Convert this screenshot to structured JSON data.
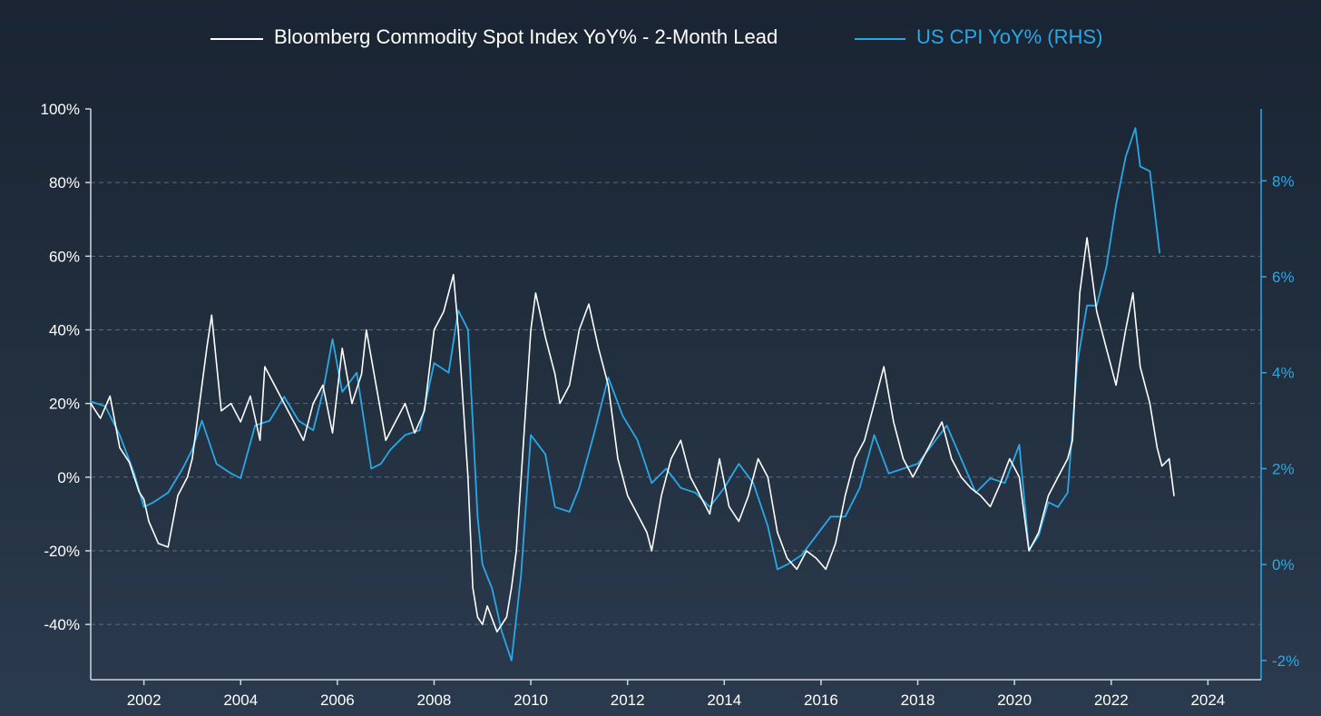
{
  "colors": {
    "background_top": "#1a2433",
    "background_bottom": "#2b3a4e",
    "commodity": "#ffffff",
    "cpi": "#29a8e8",
    "grid": "#6b7a8c",
    "axis": "#d0d6de"
  },
  "chart_data": {
    "type": "line",
    "title": "",
    "legend": {
      "placement": "top-center",
      "entries": [
        "Bloomberg Commodity Spot Index YoY% - 2-Month Lead",
        "US CPI YoY% (RHS)"
      ]
    },
    "x_axis": {
      "range": [
        2000.9,
        2025.1
      ],
      "ticks": [
        2002,
        2004,
        2006,
        2008,
        2010,
        2012,
        2014,
        2016,
        2018,
        2020,
        2022,
        2024
      ],
      "tick_labels": [
        "2002",
        "2004",
        "2006",
        "2008",
        "2010",
        "2012",
        "2014",
        "2016",
        "2018",
        "2020",
        "2022",
        "2024"
      ]
    },
    "y_left": {
      "range": [
        -55,
        100
      ],
      "ticks": [
        -40,
        -20,
        0,
        20,
        40,
        60,
        80,
        100
      ],
      "tick_labels": [
        "-40%",
        "-20%",
        "0%",
        "20%",
        "40%",
        "60%",
        "80%",
        "100%"
      ],
      "grid": true
    },
    "y_right": {
      "range": [
        -2.4,
        9.5
      ],
      "ticks": [
        -2,
        0,
        2,
        4,
        6,
        8
      ],
      "tick_labels": [
        "-2%",
        "0%",
        "2%",
        "4%",
        "6%",
        "8%"
      ]
    },
    "series": [
      {
        "name": "Bloomberg Commodity Spot Index YoY% - 2-Month Lead",
        "axis": "left",
        "color": "#ffffff",
        "x": [
          2000.9,
          2001.1,
          2001.3,
          2001.5,
          2001.7,
          2001.9,
          2002.0,
          2002.1,
          2002.3,
          2002.5,
          2002.7,
          2002.9,
          2003.0,
          2003.1,
          2003.2,
          2003.3,
          2003.4,
          2003.6,
          2003.8,
          2004.0,
          2004.2,
          2004.4,
          2004.5,
          2004.7,
          2004.9,
          2005.1,
          2005.3,
          2005.5,
          2005.7,
          2005.9,
          2006.1,
          2006.3,
          2006.5,
          2006.6,
          2006.8,
          2007.0,
          2007.2,
          2007.4,
          2007.6,
          2007.8,
          2008.0,
          2008.2,
          2008.4,
          2008.5,
          2008.6,
          2008.7,
          2008.8,
          2008.9,
          2009.0,
          2009.1,
          2009.3,
          2009.5,
          2009.6,
          2009.7,
          2009.9,
          2010.0,
          2010.1,
          2010.3,
          2010.5,
          2010.6,
          2010.8,
          2011.0,
          2011.2,
          2011.4,
          2011.6,
          2011.8,
          2012.0,
          2012.2,
          2012.4,
          2012.5,
          2012.7,
          2012.9,
          2013.1,
          2013.3,
          2013.5,
          2013.7,
          2013.9,
          2014.1,
          2014.3,
          2014.5,
          2014.7,
          2014.9,
          2015.1,
          2015.3,
          2015.5,
          2015.7,
          2015.9,
          2016.1,
          2016.3,
          2016.5,
          2016.7,
          2016.9,
          2017.1,
          2017.3,
          2017.5,
          2017.7,
          2017.9,
          2018.1,
          2018.3,
          2018.5,
          2018.7,
          2018.9,
          2019.1,
          2019.3,
          2019.5,
          2019.7,
          2019.9,
          2020.1,
          2020.3,
          2020.5,
          2020.7,
          2020.9,
          2021.1,
          2021.2,
          2021.35,
          2021.5,
          2021.7,
          2021.9,
          2022.1,
          2022.3,
          2022.45,
          2022.6,
          2022.8,
          2022.95,
          2023.05,
          2023.2,
          2023.3
        ],
        "values": [
          20,
          16,
          22,
          8,
          4,
          -4,
          -6,
          -12,
          -18,
          -19,
          -5,
          0,
          5,
          15,
          25,
          35,
          44,
          18,
          20,
          15,
          22,
          10,
          30,
          25,
          20,
          15,
          10,
          20,
          25,
          12,
          35,
          20,
          28,
          40,
          25,
          10,
          15,
          20,
          12,
          18,
          40,
          45,
          55,
          40,
          20,
          0,
          -30,
          -38,
          -40,
          -35,
          -42,
          -38,
          -30,
          -20,
          20,
          40,
          50,
          38,
          28,
          20,
          25,
          40,
          47,
          35,
          25,
          5,
          -5,
          -10,
          -15,
          -20,
          -5,
          5,
          10,
          0,
          -5,
          -10,
          5,
          -8,
          -12,
          -5,
          5,
          0,
          -15,
          -22,
          -25,
          -20,
          -22,
          -25,
          -18,
          -5,
          5,
          10,
          20,
          30,
          15,
          5,
          0,
          5,
          10,
          15,
          5,
          0,
          -3,
          -5,
          -8,
          -2,
          5,
          0,
          -20,
          -15,
          -5,
          0,
          5,
          10,
          50,
          65,
          45,
          35,
          25,
          40,
          50,
          30,
          20,
          8,
          3,
          5,
          -5
        ],
        "value_labels": []
      },
      {
        "name": "US CPI YoY% (RHS)",
        "axis": "right",
        "color": "#29a8e8",
        "x": [
          2000.9,
          2001.2,
          2001.5,
          2001.8,
          2002.0,
          2002.2,
          2002.5,
          2002.8,
          2003.0,
          2003.2,
          2003.5,
          2003.8,
          2004.0,
          2004.3,
          2004.6,
          2004.9,
          2005.2,
          2005.5,
          2005.7,
          2005.9,
          2006.1,
          2006.4,
          2006.7,
          2006.9,
          2007.1,
          2007.4,
          2007.7,
          2008.0,
          2008.3,
          2008.5,
          2008.7,
          2008.9,
          2009.0,
          2009.2,
          2009.4,
          2009.6,
          2009.8,
          2010.0,
          2010.3,
          2010.5,
          2010.8,
          2011.0,
          2011.3,
          2011.6,
          2011.9,
          2012.2,
          2012.5,
          2012.8,
          2013.1,
          2013.4,
          2013.7,
          2014.0,
          2014.3,
          2014.6,
          2014.9,
          2015.1,
          2015.3,
          2015.6,
          2015.9,
          2016.2,
          2016.5,
          2016.8,
          2017.1,
          2017.4,
          2017.7,
          2018.0,
          2018.3,
          2018.6,
          2018.9,
          2019.2,
          2019.5,
          2019.8,
          2020.1,
          2020.3,
          2020.5,
          2020.7,
          2020.9,
          2021.1,
          2021.3,
          2021.5,
          2021.7,
          2021.9,
          2022.1,
          2022.3,
          2022.5,
          2022.6,
          2022.8,
          2023.0
        ],
        "values": [
          3.4,
          3.3,
          2.7,
          1.9,
          1.2,
          1.3,
          1.5,
          2.0,
          2.4,
          3.0,
          2.1,
          1.9,
          1.8,
          2.9,
          3.0,
          3.5,
          3.0,
          2.8,
          3.6,
          4.7,
          3.6,
          4.0,
          2.0,
          2.1,
          2.4,
          2.7,
          2.8,
          4.2,
          4.0,
          5.3,
          4.9,
          1.0,
          0.0,
          -0.5,
          -1.4,
          -2.0,
          -0.2,
          2.7,
          2.3,
          1.2,
          1.1,
          1.6,
          2.7,
          3.9,
          3.1,
          2.6,
          1.7,
          2.0,
          1.6,
          1.5,
          1.2,
          1.6,
          2.1,
          1.7,
          0.8,
          -0.1,
          0.0,
          0.2,
          0.6,
          1.0,
          1.0,
          1.6,
          2.7,
          1.9,
          2.0,
          2.1,
          2.5,
          2.9,
          2.2,
          1.5,
          1.8,
          1.7,
          2.5,
          0.3,
          0.6,
          1.3,
          1.2,
          1.5,
          4.2,
          5.4,
          5.4,
          6.2,
          7.5,
          8.5,
          9.1,
          8.3,
          8.2,
          6.5
        ],
        "value_labels": []
      }
    ]
  }
}
